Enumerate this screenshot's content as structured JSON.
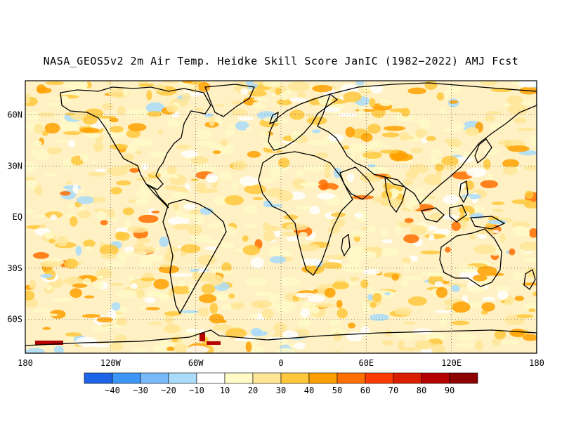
{
  "title": "NASA_GEOS5v2 2m Air Temp. Heidke Skill Score JanIC (1982−2022) AMJ Fcst",
  "map": {
    "lon_range": [
      -180,
      180
    ],
    "lat_range": [
      -80,
      80
    ],
    "lat_labels": [
      {
        "lat": 60,
        "text": "60N"
      },
      {
        "lat": 30,
        "text": "30N"
      },
      {
        "lat": 0,
        "text": "EQ"
      },
      {
        "lat": -30,
        "text": "30S"
      },
      {
        "lat": -60,
        "text": "60S"
      }
    ],
    "lon_labels": [
      {
        "lon": -180,
        "text": "180"
      },
      {
        "lon": -120,
        "text": "120W"
      },
      {
        "lon": -60,
        "text": "60W"
      },
      {
        "lon": 0,
        "text": "0"
      },
      {
        "lon": 60,
        "text": "60E"
      },
      {
        "lon": 120,
        "text": "120E"
      },
      {
        "lon": 180,
        "text": "180"
      }
    ],
    "gridlines": "dotted"
  },
  "colorbar": {
    "levels": [
      "−40",
      "−30",
      "−20",
      "−10",
      "10",
      "20",
      "30",
      "40",
      "50",
      "60",
      "70",
      "80",
      "90"
    ],
    "colors": [
      "#1e64e6",
      "#3c96f5",
      "#78b9fa",
      "#aadcfa",
      "#ffffff",
      "#fffac8",
      "#ffe696",
      "#ffc83c",
      "#ffa000",
      "#ff6e00",
      "#ff3c00",
      "#dc1e00",
      "#b40000",
      "#8c0000"
    ]
  }
}
